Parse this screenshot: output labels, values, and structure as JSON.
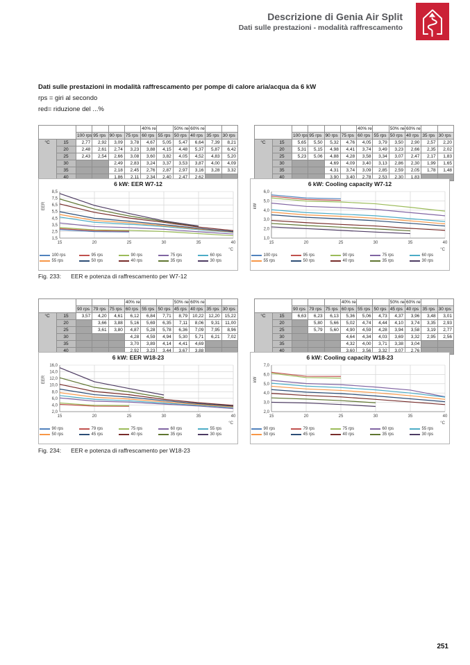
{
  "header": {
    "title": "Descrizione di Genia Air Split",
    "subtitle": "Dati sulle prestazioni - modalità raffrescamento"
  },
  "logo": {
    "name": "house-arrow-logo",
    "background": "#cb2136",
    "glyph_color": "#ffffff"
  },
  "intro": {
    "heading": "Dati sulle prestazioni in modalità raffrescamento per pompe di calore aria/acqua da 6 kW",
    "line1": "rps = giri al secondo",
    "line2": "red= riduzione del ...%"
  },
  "palette": [
    "#4F81BD",
    "#C0504D",
    "#9BBB59",
    "#8064A2",
    "#4BACC6",
    "#F79646",
    "#2C4D75",
    "#772C2A",
    "#5F7530",
    "#4D3B62"
  ],
  "sections": [
    {
      "caption_label": "Fig. 233:",
      "caption_text": "EER e potenza di raffrescamento per W7-12",
      "tables": [
        {
          "unit": "°C",
          "red_labels": [
            "",
            "",
            "",
            "",
            "40% red.",
            "",
            "50% red.",
            "60% red.",
            "",
            ""
          ],
          "rps": [
            "100 rps",
            "95 rps",
            "90 rps",
            "75 rps",
            "60 rps",
            "55 rps",
            "50 rps",
            "40 rps",
            "35 rps",
            "30 rps"
          ],
          "temps": [
            "15",
            "20",
            "25",
            "30",
            "35",
            "40"
          ],
          "rows": [
            [
              "2,77",
              "2,92",
              "3,09",
              "3,78",
              "4,67",
              "5,05",
              "5,47",
              "6,64",
              "7,39",
              "8,21"
            ],
            [
              "2,48",
              "2,61",
              "2,74",
              "3,23",
              "3,88",
              "4,15",
              "4,48",
              "5,37",
              "5,87",
              "6,42"
            ],
            [
              "2,43",
              "2,54",
              "2,66",
              "3,08",
              "3,60",
              "3,82",
              "4,05",
              "4,52",
              "4,83",
              "5,20"
            ],
            [
              null,
              null,
              "2,49",
              "2,83",
              "3,24",
              "3,37",
              "3,53",
              "3,87",
              "4,00",
              "4,09"
            ],
            [
              null,
              null,
              "2,18",
              "2,45",
              "2,76",
              "2,87",
              "2,97",
              "3,16",
              "3,28",
              "3,32"
            ],
            [
              null,
              null,
              "1,86",
              "2,11",
              "2,34",
              "2,40",
              "2,47",
              "2,62",
              null,
              null
            ]
          ]
        },
        {
          "unit": "°C",
          "red_labels": [
            "",
            "",
            "",
            "",
            "40% red.",
            "",
            "50% red.",
            "60% red.",
            "",
            ""
          ],
          "rps": [
            "100 rps",
            "95 rps",
            "90 rps",
            "75 rps",
            "60 rps",
            "55 rps",
            "50 rps",
            "40 rps",
            "35 rps",
            "30 rps"
          ],
          "temps": [
            "15",
            "20",
            "25",
            "30",
            "35",
            "40"
          ],
          "rows": [
            [
              "5,65",
              "5,50",
              "5,32",
              "4,76",
              "4,05",
              "3,79",
              "3,50",
              "2,90",
              "2,57",
              "2,20"
            ],
            [
              "5,31",
              "5,15",
              "4,98",
              "4,41",
              "3,74",
              "3,49",
              "3,23",
              "2,66",
              "2,35",
              "2,02"
            ],
            [
              "5,23",
              "5,06",
              "4,88",
              "4,28",
              "3,58",
              "3,34",
              "3,07",
              "2,47",
              "2,17",
              "1,83"
            ],
            [
              null,
              null,
              "4,69",
              "4,09",
              "3,40",
              "3,13",
              "2,86",
              "2,30",
              "1,99",
              "1,65"
            ],
            [
              null,
              null,
              "4,31",
              "3,74",
              "3,09",
              "2,85",
              "2,59",
              "2,05",
              "1,78",
              "1,48"
            ],
            [
              null,
              null,
              "3,90",
              "3,40",
              "2,78",
              "2,53",
              "2,30",
              "1,83",
              null,
              null
            ]
          ]
        }
      ]
    },
    {
      "caption_label": "Fig. 234:",
      "caption_text": "EER e potenza di raffrescamento per W18-23",
      "tables": [
        {
          "unit": "°C",
          "red_labels": [
            "",
            "",
            "",
            "40% red.",
            "",
            "",
            "50% red.",
            "60% red.",
            "",
            ""
          ],
          "rps": [
            "90 rps",
            "79 rps",
            "75 rps",
            "60 rps",
            "55 rps",
            "50 rps",
            "45 rps",
            "40 rps",
            "35 rps",
            "30 rps"
          ],
          "temps": [
            "15",
            "20",
            "25",
            "30",
            "35",
            "40"
          ],
          "rows": [
            [
              "3,57",
              "4,20",
              "4,61",
              "6,12",
              "6,84",
              "7,71",
              "8,79",
              "10,22",
              "12,20",
              "15,22"
            ],
            [
              null,
              "3,66",
              "3,88",
              "5,16",
              "5,69",
              "6,35",
              "7,11",
              "8,06",
              "9,31",
              "11,00"
            ],
            [
              null,
              "3,61",
              "3,80",
              "4,87",
              "5,28",
              "5,78",
              "6,36",
              "7,09",
              "7,95",
              "8,96"
            ],
            [
              null,
              null,
              null,
              "4,28",
              "4,59",
              "4,94",
              "5,30",
              "5,71",
              "6,21",
              "7,02"
            ],
            [
              null,
              null,
              null,
              "3,70",
              "3,89",
              "4,14",
              "4,41",
              "4,69",
              null,
              null
            ],
            [
              null,
              null,
              null,
              "2,92",
              "3,23",
              "3,44",
              "3,67",
              "3,88",
              null,
              null
            ]
          ]
        },
        {
          "unit": "°C",
          "red_labels": [
            "",
            "",
            "",
            "40% red.",
            "",
            "",
            "50% red.",
            "60% red.",
            "",
            ""
          ],
          "rps": [
            "90 rps",
            "79 rps",
            "75 rps",
            "60 rps",
            "55 rps",
            "50 rps",
            "45 rps",
            "40 rps",
            "35 rps",
            "30 rps"
          ],
          "temps": [
            "15",
            "20",
            "25",
            "30",
            "35",
            "40"
          ],
          "rows": [
            [
              "6,63",
              "6,23",
              "6,13",
              "5,36",
              "5,06",
              "4,73",
              "4,37",
              "3,96",
              "3,48",
              "3,01"
            ],
            [
              null,
              "5,80",
              "5,66",
              "5,02",
              "4,74",
              "4,44",
              "4,10",
              "3,74",
              "3,35",
              "2,93"
            ],
            [
              null,
              "5,79",
              "5,60",
              "4,90",
              "4,59",
              "4,28",
              "3,94",
              "3,58",
              "3,19",
              "2,77"
            ],
            [
              null,
              null,
              null,
              "4,64",
              "4,34",
              "4,03",
              "3,69",
              "3,32",
              "2,95",
              "2,56"
            ],
            [
              null,
              null,
              null,
              "4,32",
              "4,00",
              "3,71",
              "3,38",
              "3,04",
              null,
              null
            ],
            [
              null,
              null,
              null,
              "3,60",
              "3,56",
              "3,32",
              "3,07",
              "2,76",
              null,
              null
            ]
          ]
        }
      ]
    }
  ],
  "chart_data": [
    {
      "type": "line",
      "title": "6 kW: EER W7-12",
      "ylabel": "EER",
      "xlabel": "°C",
      "x": [
        15,
        20,
        25,
        30,
        35,
        40
      ],
      "ylim": [
        1.5,
        8.5
      ],
      "ystep": 1,
      "grid": true,
      "legend_position": "bottom",
      "series": [
        {
          "name": "100 rps",
          "values": [
            2.77,
            2.48,
            2.43,
            null,
            null,
            null
          ]
        },
        {
          "name": "95 rps",
          "values": [
            2.92,
            2.61,
            2.54,
            null,
            null,
            null
          ]
        },
        {
          "name": "90 rps",
          "values": [
            3.09,
            2.74,
            2.66,
            2.49,
            2.18,
            1.86
          ]
        },
        {
          "name": "75 rps",
          "values": [
            3.78,
            3.23,
            3.08,
            2.83,
            2.45,
            2.11
          ]
        },
        {
          "name": "60 rps",
          "values": [
            4.67,
            3.88,
            3.6,
            3.24,
            2.76,
            2.34
          ]
        },
        {
          "name": "55 rps",
          "values": [
            5.05,
            4.15,
            3.82,
            3.37,
            2.87,
            2.4
          ]
        },
        {
          "name": "50 rps",
          "values": [
            5.47,
            4.48,
            4.05,
            3.53,
            2.97,
            2.47
          ]
        },
        {
          "name": "40 rps",
          "values": [
            6.64,
            5.37,
            4.52,
            3.87,
            3.16,
            2.62
          ]
        },
        {
          "name": "35 rps",
          "values": [
            7.39,
            5.87,
            4.83,
            4.0,
            3.28,
            null
          ]
        },
        {
          "name": "30 rps",
          "values": [
            8.21,
            6.42,
            5.2,
            4.09,
            3.32,
            null
          ]
        }
      ]
    },
    {
      "type": "line",
      "title": "6 kW: Cooling capacity W7-12",
      "ylabel": "kW",
      "xlabel": "°C",
      "x": [
        15,
        20,
        25,
        30,
        35,
        40
      ],
      "ylim": [
        1.0,
        6.0
      ],
      "ystep": 1,
      "grid": true,
      "legend_position": "bottom",
      "series": [
        {
          "name": "100 rps",
          "values": [
            5.65,
            5.31,
            5.23,
            null,
            null,
            null
          ]
        },
        {
          "name": "95 rps",
          "values": [
            5.5,
            5.15,
            5.06,
            null,
            null,
            null
          ]
        },
        {
          "name": "90 rps",
          "values": [
            5.32,
            4.98,
            4.88,
            4.69,
            4.31,
            3.9
          ]
        },
        {
          "name": "75 rps",
          "values": [
            4.76,
            4.41,
            4.28,
            4.09,
            3.74,
            3.4
          ]
        },
        {
          "name": "60 rps",
          "values": [
            4.05,
            3.74,
            3.58,
            3.4,
            3.09,
            2.78
          ]
        },
        {
          "name": "55 rps",
          "values": [
            3.79,
            3.49,
            3.34,
            3.13,
            2.85,
            2.53
          ]
        },
        {
          "name": "50 rps",
          "values": [
            3.5,
            3.23,
            3.07,
            2.86,
            2.59,
            2.3
          ]
        },
        {
          "name": "40 rps",
          "values": [
            2.9,
            2.66,
            2.47,
            2.3,
            2.05,
            1.83
          ]
        },
        {
          "name": "35 rps",
          "values": [
            2.57,
            2.35,
            2.17,
            1.99,
            1.78,
            null
          ]
        },
        {
          "name": "30 rps",
          "values": [
            2.2,
            2.02,
            1.83,
            1.65,
            1.48,
            null
          ]
        }
      ]
    },
    {
      "type": "line",
      "title": "6 kW: EER W18-23",
      "ylabel": "EER",
      "xlabel": "°C",
      "x": [
        15,
        20,
        25,
        30,
        35,
        40
      ],
      "ylim": [
        2.0,
        16.0
      ],
      "ystep": 2,
      "grid": true,
      "legend_position": "bottom",
      "series": [
        {
          "name": "90 rps",
          "values": [
            3.57,
            null,
            null,
            null,
            null,
            null
          ]
        },
        {
          "name": "79 rps",
          "values": [
            4.2,
            3.66,
            3.61,
            null,
            null,
            null
          ]
        },
        {
          "name": "75 rps",
          "values": [
            4.61,
            3.88,
            3.8,
            null,
            null,
            null
          ]
        },
        {
          "name": "60 rps",
          "values": [
            6.12,
            5.16,
            4.87,
            4.28,
            3.7,
            2.92
          ]
        },
        {
          "name": "55 rps",
          "values": [
            6.84,
            5.69,
            5.28,
            4.59,
            3.89,
            3.23
          ]
        },
        {
          "name": "50 rps",
          "values": [
            7.71,
            6.35,
            5.78,
            4.94,
            4.14,
            3.44
          ]
        },
        {
          "name": "45 rps",
          "values": [
            8.79,
            7.11,
            6.36,
            5.3,
            4.41,
            3.67
          ]
        },
        {
          "name": "40 rps",
          "values": [
            10.22,
            8.06,
            7.09,
            5.71,
            4.69,
            3.88
          ]
        },
        {
          "name": "35 rps",
          "values": [
            12.2,
            9.31,
            7.95,
            6.21,
            null,
            null
          ]
        },
        {
          "name": "30 rps",
          "values": [
            15.22,
            11.0,
            8.96,
            7.02,
            null,
            null
          ]
        }
      ]
    },
    {
      "type": "line",
      "title": "6 kW: Cooling capacity W18-23",
      "ylabel": "kW",
      "xlabel": "°C",
      "x": [
        15,
        20,
        25,
        30,
        35,
        40
      ],
      "ylim": [
        2.0,
        7.0
      ],
      "ystep": 1,
      "grid": true,
      "legend_position": "bottom",
      "series": [
        {
          "name": "90 rps",
          "values": [
            6.63,
            null,
            null,
            null,
            null,
            null
          ]
        },
        {
          "name": "79 rps",
          "values": [
            6.23,
            5.8,
            5.79,
            null,
            null,
            null
          ]
        },
        {
          "name": "75 rps",
          "values": [
            6.13,
            5.66,
            5.6,
            null,
            null,
            null
          ]
        },
        {
          "name": "60 rps",
          "values": [
            5.36,
            5.02,
            4.9,
            4.64,
            4.32,
            3.6
          ]
        },
        {
          "name": "55 rps",
          "values": [
            5.06,
            4.74,
            4.59,
            4.34,
            4.0,
            3.56
          ]
        },
        {
          "name": "50 rps",
          "values": [
            4.73,
            4.44,
            4.28,
            4.03,
            3.71,
            3.32
          ]
        },
        {
          "name": "45 rps",
          "values": [
            4.37,
            4.1,
            3.94,
            3.69,
            3.38,
            3.07
          ]
        },
        {
          "name": "40 rps",
          "values": [
            3.96,
            3.74,
            3.58,
            3.32,
            3.04,
            2.76
          ]
        },
        {
          "name": "35 rps",
          "values": [
            3.48,
            3.35,
            3.19,
            2.95,
            null,
            null
          ]
        },
        {
          "name": "30 rps",
          "values": [
            3.01,
            2.93,
            2.77,
            2.56,
            null,
            null
          ]
        }
      ]
    }
  ],
  "footer": {
    "page_number": "251"
  }
}
